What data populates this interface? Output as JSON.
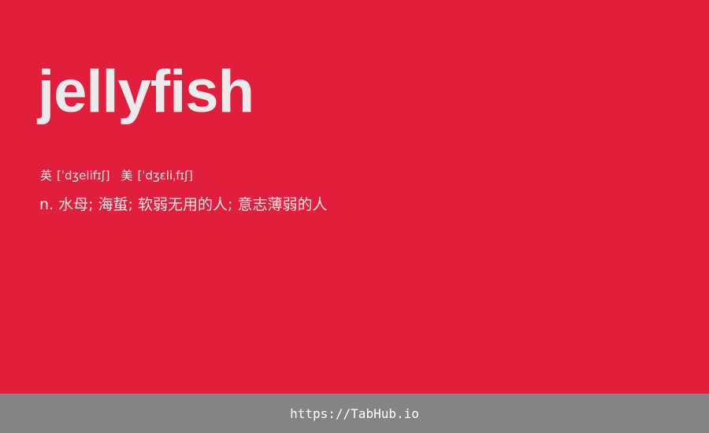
{
  "card": {
    "word": "jellyfish",
    "phonetics": {
      "uk_label": "英",
      "uk_ipa": "[ˈdʒelifɪʃ]",
      "us_label": "美",
      "us_ipa": "[ˈdʒɛliˌfɪʃ]"
    },
    "definition": "n. 水母; 海蜇; 软弱无用的人; 意志薄弱的人"
  },
  "footer": {
    "link_text": "https://TabHub.io"
  },
  "colors": {
    "background": "#e11e3c",
    "word_text": "#ebebeb",
    "footer_background": "#848484"
  }
}
